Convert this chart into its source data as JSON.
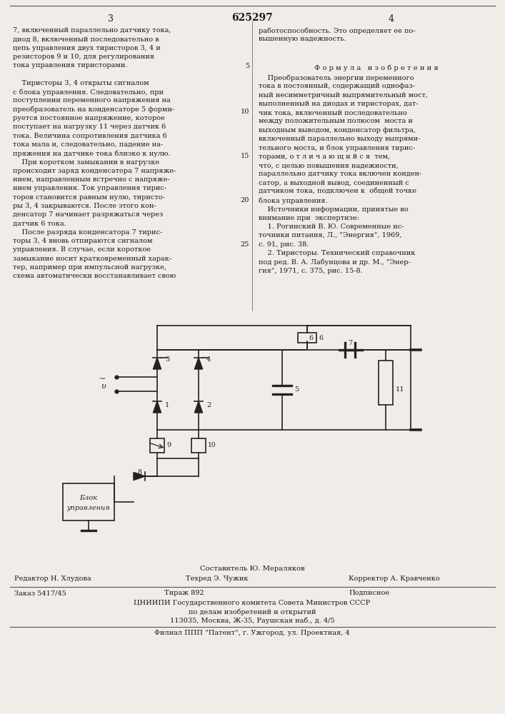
{
  "page_number_left": "3",
  "page_number_center": "625297",
  "page_number_right": "4",
  "bg_color": "#f0ede8",
  "text_color": "#1a1a1a",
  "left_column_text": [
    "7, включенный параллельно датчику тока,",
    "диод 8, включенный последовательно в",
    "цепь управления двух тиристоров 3, 4 и",
    "резисторов 9 и 10, для регулирования",
    "тока управления тиристорами.",
    "",
    "    Тиристоры 3, 4 открыты сигналом",
    "с блока управления. Следовательно, при",
    "поступлении переменного напряжения на",
    "преобразователь на конденсаторе 5 форми-",
    "руется постоянное напряжение, которое",
    "поступает на нагрузку 11 через датчик 6",
    "тока. Величина сопротивления датчика 6",
    "тока мала и, следовательно, падение на-",
    "пряжения на датчике тока близко к нулю.",
    "    При коротком замыкании в нагрузке",
    "происходит заряд конденсатора 7 напряже-",
    "нием, направленным встречно с напряже-",
    "нием управления. Ток управления тирис-",
    "торов становится равным нулю, тиристо-",
    "ры 3, 4 закрываются. После этого кон-",
    "денсатор 7 начинает разряжаться через",
    "датчик 6 тока.",
    "    После разряда конденсатора 7 тирис-",
    "торы 3, 4 вновь отпираются сигналом",
    "управления. В случае, если короткое",
    "замыкание носит кратковременный харак-",
    "тер, например при импульсной нагрузке,",
    "схема автоматически восстанавливает свою"
  ],
  "right_column_text_top": [
    "работоспособность. Это определяет ее по-",
    "вышенную надежность."
  ],
  "formula_header": "Ф о р м у л а   и з о б р е т е н и я",
  "right_column_text_formula": [
    "    Преобразователь энергии переменного",
    "тока в постоянный, содержащий однофаз-",
    "ный несимметричный выпрямительный мост,",
    "выполненный на диодах и тиристорах, дат-",
    "чик тока, включенный последовательно",
    "между положительным полюсом  моста и",
    "выходным выводом, конденсатор фильтра,",
    "включенный параллельно выходу выпрями-",
    "тельного моста, и блок управления тирис-",
    "торами, о т л и ч а ю щ и й с я  тем,",
    "что, с целью повышения надежности,",
    "параллельно датчику тока включен конден-",
    "сатор, а выходной вывод, соединенный с",
    "датчиком тока, подключен к  общей точке",
    "блока управления.",
    "    Источники информации, принятые во",
    "внимание при  экспертизе:",
    "    1. Рогинский В. Ю. Современные ис-",
    "точники питания, Л., \"Энергия\", 1969,",
    "с. 91, рис. 38.",
    "    2. Тиристоры. Технический справочник",
    "под ред. В. А. Лабунцова и др. М., \"Энер-",
    "гия\", 1971, с. 375, рис. 15-8."
  ],
  "footer_composer": "Составитель Ю. Мераляков",
  "footer_editor": "Редактор Н. Хлудова",
  "footer_techred": "Техред Э. Чужик",
  "footer_corrector": "Корректор А. Кравченко",
  "footer_order": "Заказ 5417/45",
  "footer_circulation": "Тираж 892",
  "footer_subscription": "Подписное",
  "footer_org": "ЦНИИПИ Государственного комитета Совета Министров СССР",
  "footer_org2": "по делам изобретений и открытий",
  "footer_address": "113035, Москва, Ж-35, Раушская наб., д. 4/5",
  "footer_branch": "Филиал ППП \"Патент\", г. Ужгород, ул. Проектная, 4"
}
